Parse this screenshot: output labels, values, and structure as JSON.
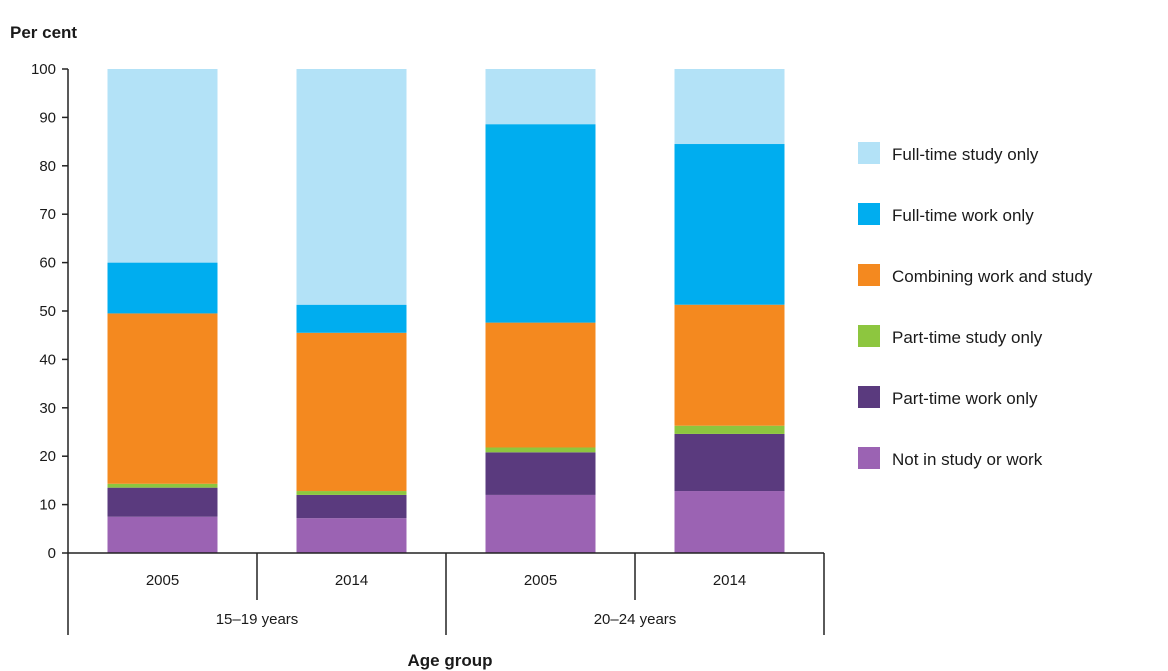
{
  "chart_data": {
    "type": "bar",
    "stacked": true,
    "title": "",
    "ylabel": "Per cent",
    "xlabel": "Age group",
    "ylim": [
      0,
      100
    ],
    "yticks": [
      0,
      10,
      20,
      30,
      40,
      50,
      60,
      70,
      80,
      90,
      100
    ],
    "grid": false,
    "legend_position": "right",
    "groups": [
      {
        "label": "15–19 years",
        "categories": [
          "2005",
          "2014"
        ]
      },
      {
        "label": "20–24 years",
        "categories": [
          "2005",
          "2014"
        ]
      }
    ],
    "series": [
      {
        "name": "Not in study or work",
        "color": "#9b63b3",
        "values": [
          7.5,
          7.2,
          12.0,
          12.8
        ]
      },
      {
        "name": "Part-time work only",
        "color": "#5a3a7e",
        "values": [
          6.0,
          4.8,
          8.8,
          11.8
        ]
      },
      {
        "name": "Part-time study only",
        "color": "#8dc63f",
        "values": [
          0.8,
          0.8,
          1.0,
          1.7
        ]
      },
      {
        "name": "Combining work and study",
        "color": "#f4891f",
        "values": [
          35.2,
          32.7,
          25.8,
          25.0
        ]
      },
      {
        "name": "Full-time work only",
        "color": "#00adef",
        "values": [
          10.5,
          5.8,
          41.0,
          33.2
        ]
      },
      {
        "name": "Full-time study only",
        "color": "#b3e2f7",
        "values": [
          40.0,
          48.7,
          11.4,
          15.5
        ]
      }
    ]
  }
}
